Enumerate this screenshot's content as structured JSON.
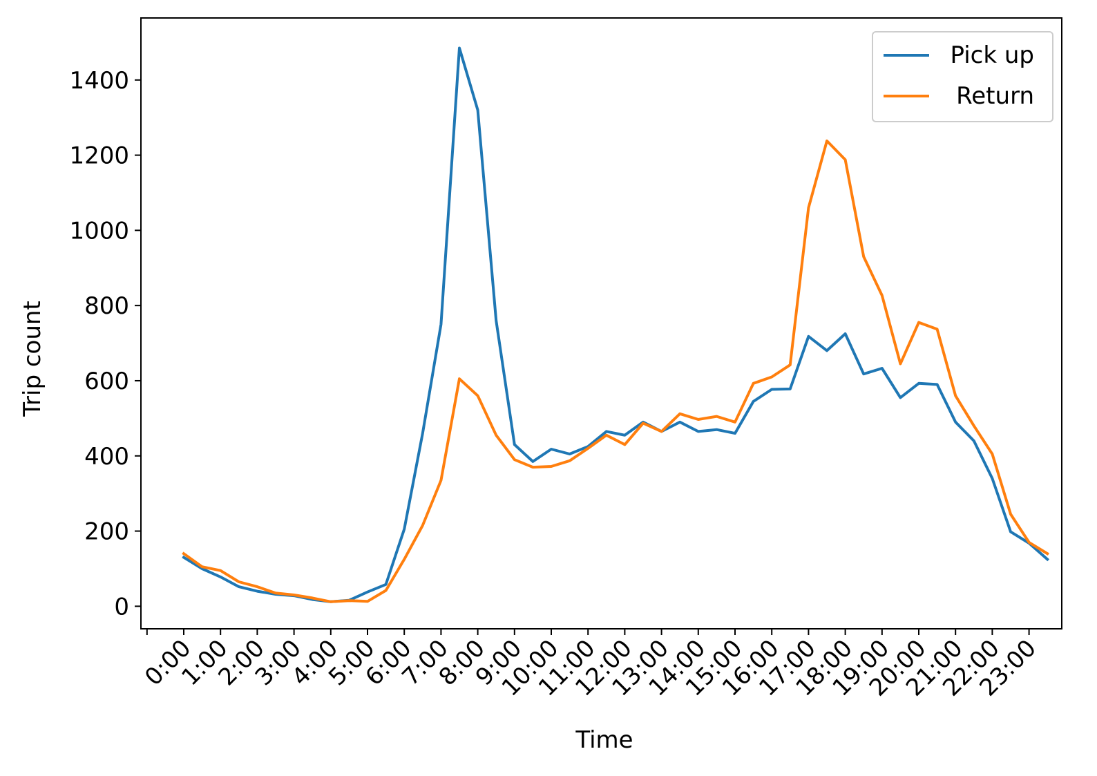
{
  "chart_data": {
    "type": "line",
    "title": "",
    "xlabel": "Time",
    "ylabel": "Trip count",
    "ylim": [
      -60,
      1565
    ],
    "yticks": [
      0,
      200,
      400,
      600,
      800,
      1000,
      1200,
      1400
    ],
    "xtick_labels": [
      "0:00",
      "1:00",
      "2:00",
      "3:00",
      "4:00",
      "5:00",
      "6:00",
      "7:00",
      "8:00",
      "9:00",
      "10:00",
      "11:00",
      "12:00",
      "13:00",
      "14:00",
      "15:00",
      "16:00",
      "17:00",
      "18:00",
      "19:00",
      "20:00",
      "21:00",
      "22:00",
      "23:00"
    ],
    "x": [
      "0:00",
      "0:30",
      "1:00",
      "1:30",
      "2:00",
      "2:30",
      "3:00",
      "3:30",
      "4:00",
      "4:30",
      "5:00",
      "5:30",
      "6:00",
      "6:30",
      "7:00",
      "7:30",
      "8:00",
      "8:30",
      "9:00",
      "9:30",
      "10:00",
      "10:30",
      "11:00",
      "11:30",
      "12:00",
      "12:30",
      "13:00",
      "13:30",
      "14:00",
      "14:30",
      "15:00",
      "15:30",
      "16:00",
      "16:30",
      "17:00",
      "17:30",
      "18:00",
      "18:30",
      "19:00",
      "19:30",
      "20:00",
      "20:30",
      "21:00",
      "21:30",
      "22:00",
      "22:30",
      "23:00",
      "23:30"
    ],
    "grid": false,
    "legend_position": "top-right",
    "series": [
      {
        "name": "Pick up",
        "color": "#1f77b4",
        "values": [
          130,
          100,
          78,
          52,
          40,
          32,
          28,
          18,
          12,
          16,
          38,
          58,
          205,
          460,
          750,
          1485,
          1320,
          760,
          430,
          385,
          418,
          405,
          425,
          465,
          455,
          490,
          465,
          490,
          465,
          470,
          460,
          545,
          577,
          578,
          718,
          680,
          725,
          618,
          633,
          555,
          593,
          590,
          490,
          440,
          340,
          198,
          168,
          125
        ]
      },
      {
        "name": "Return",
        "color": "#ff7f0e",
        "values": [
          140,
          105,
          95,
          65,
          52,
          35,
          30,
          22,
          12,
          15,
          13,
          42,
          125,
          215,
          335,
          605,
          560,
          455,
          390,
          370,
          372,
          387,
          420,
          455,
          430,
          487,
          465,
          512,
          497,
          505,
          490,
          593,
          610,
          642,
          1060,
          1238,
          1188,
          930,
          827,
          645,
          755,
          737,
          560,
          480,
          405,
          245,
          170,
          140
        ]
      }
    ]
  }
}
